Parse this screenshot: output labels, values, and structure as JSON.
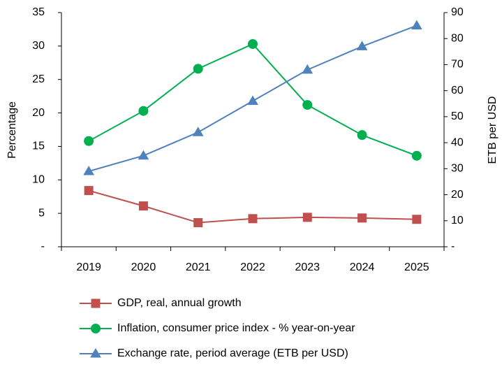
{
  "chart_data": {
    "type": "line",
    "categories": [
      "2019",
      "2020",
      "2021",
      "2022",
      "2023",
      "2024",
      "2025"
    ],
    "ylabel": "Percentage",
    "y2label": "ETB per USD",
    "ylim": [
      0,
      35
    ],
    "yticks": [
      {
        "value": 0,
        "label": "-"
      },
      5,
      10,
      15,
      20,
      25,
      30,
      35
    ],
    "y2lim": [
      0,
      90
    ],
    "y2ticks": [
      {
        "value": 0,
        "label": "-"
      },
      10,
      20,
      30,
      40,
      50,
      60,
      70,
      80,
      90
    ],
    "grid": false,
    "legend": "bottom",
    "series": [
      {
        "name": "GDP, real, annual growth",
        "color": "#c0504d",
        "marker": "square",
        "values": [
          8.4,
          6.1,
          3.6,
          4.2,
          4.4,
          4.3,
          4.1
        ]
      },
      {
        "name": "Inflation, consumer price index - % year-on-year",
        "color": "#00b050",
        "marker": "circle",
        "values": [
          15.8,
          20.3,
          26.6,
          30.3,
          21.2,
          16.7,
          13.6
        ]
      },
      {
        "name": "Exchange rate, period average (ETB per USD)",
        "color": "#4f81bd",
        "marker": "triangle",
        "axis": "y2",
        "values": [
          29,
          35,
          44,
          56,
          68,
          77,
          85
        ]
      }
    ]
  }
}
